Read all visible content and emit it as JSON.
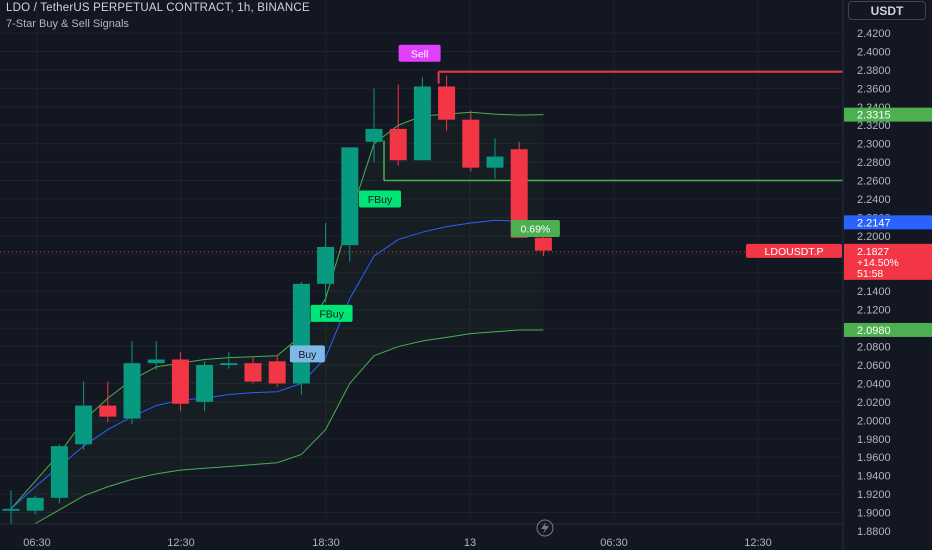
{
  "header": {
    "title": "LDO / TetherUS PERPETUAL CONTRACT, 1h, BINANCE",
    "indicator": "7-Star Buy & Sell Signals",
    "currency": "USDT"
  },
  "colors": {
    "background": "#131722",
    "up": "#089981",
    "down": "#f23645",
    "sma_line": "#2962ff",
    "band_line": "#4caf50",
    "grid": "#1e222d"
  },
  "chart_data": {
    "type": "candlestick",
    "y_range": [
      1.872,
      2.432
    ],
    "y_ticks": [
      "2.4200",
      "2.4000",
      "2.3800",
      "2.3600",
      "2.3400",
      "2.3200",
      "2.3000",
      "2.2800",
      "2.2600",
      "2.2400",
      "2.2200",
      "2.2000",
      "2.1800",
      "2.1600",
      "2.1400",
      "2.1200",
      "2.1000",
      "2.0800",
      "2.0600",
      "2.0400",
      "2.0200",
      "2.0000",
      "1.9800",
      "1.9600",
      "1.9400",
      "1.9200",
      "1.9000",
      "1.8800"
    ],
    "x_ticks": [
      "06:30",
      "12:30",
      "18:30",
      "13",
      "06:30",
      "12:30"
    ],
    "candles": [
      {
        "o": 1.902,
        "h": 1.924,
        "l": 1.88,
        "c": 1.904
      },
      {
        "o": 1.902,
        "h": 1.918,
        "l": 1.898,
        "c": 1.916
      },
      {
        "o": 1.916,
        "h": 1.974,
        "l": 1.91,
        "c": 1.972
      },
      {
        "o": 1.974,
        "h": 2.042,
        "l": 1.968,
        "c": 2.016
      },
      {
        "o": 2.016,
        "h": 2.042,
        "l": 1.998,
        "c": 2.004
      },
      {
        "o": 2.002,
        "h": 2.086,
        "l": 1.996,
        "c": 2.062
      },
      {
        "o": 2.062,
        "h": 2.086,
        "l": 2.055,
        "c": 2.066
      },
      {
        "o": 2.066,
        "h": 2.074,
        "l": 2.01,
        "c": 2.018
      },
      {
        "o": 2.02,
        "h": 2.064,
        "l": 2.01,
        "c": 2.06
      },
      {
        "o": 2.06,
        "h": 2.074,
        "l": 2.056,
        "c": 2.062
      },
      {
        "o": 2.062,
        "h": 2.068,
        "l": 2.04,
        "c": 2.042
      },
      {
        "o": 2.064,
        "h": 2.07,
        "l": 2.036,
        "c": 2.04
      },
      {
        "o": 2.04,
        "h": 2.15,
        "l": 2.028,
        "c": 2.148
      },
      {
        "o": 2.148,
        "h": 2.214,
        "l": 2.128,
        "c": 2.188
      },
      {
        "o": 2.19,
        "h": 2.296,
        "l": 2.172,
        "c": 2.296
      },
      {
        "o": 2.302,
        "h": 2.36,
        "l": 2.28,
        "c": 2.316
      },
      {
        "o": 2.316,
        "h": 2.364,
        "l": 2.276,
        "c": 2.282
      },
      {
        "o": 2.282,
        "h": 2.372,
        "l": 2.282,
        "c": 2.362
      },
      {
        "o": 2.362,
        "h": 2.374,
        "l": 2.314,
        "c": 2.326
      },
      {
        "o": 2.326,
        "h": 2.336,
        "l": 2.27,
        "c": 2.274
      },
      {
        "o": 2.274,
        "h": 2.306,
        "l": 2.262,
        "c": 2.286
      },
      {
        "o": 2.294,
        "h": 2.302,
        "l": 2.198,
        "c": 2.198
      },
      {
        "o": 2.198,
        "h": 2.204,
        "l": 2.178,
        "c": 2.184
      }
    ],
    "sma_line": [
      1.904,
      1.928,
      1.95,
      1.972,
      1.99,
      2.004,
      2.016,
      2.022,
      2.024,
      2.028,
      2.03,
      2.031,
      2.04,
      2.068,
      2.132,
      2.178,
      2.196,
      2.204,
      2.21,
      2.214,
      2.217,
      2.216,
      2.215
    ],
    "upper_band": [
      1.904,
      1.934,
      1.964,
      2.0,
      2.024,
      2.044,
      2.058,
      2.062,
      2.066,
      2.068,
      2.069,
      2.07,
      2.092,
      2.132,
      2.22,
      2.3,
      2.32,
      2.33,
      2.332,
      2.334,
      2.332,
      2.331,
      2.3315
    ],
    "lower_band": [
      1.87,
      1.888,
      1.903,
      1.918,
      1.928,
      1.936,
      1.942,
      1.946,
      1.948,
      1.95,
      1.952,
      1.954,
      1.963,
      1.99,
      2.04,
      2.07,
      2.08,
      2.086,
      2.09,
      2.094,
      2.096,
      2.098,
      2.098
    ],
    "resistance_line": {
      "value": 2.378,
      "from_index": 18
    },
    "support_line": {
      "value": 2.26,
      "from_index": 15
    },
    "price_labels": [
      {
        "value": 2.3315,
        "text": "2.3315",
        "color": "#4caf50"
      },
      {
        "value": 2.2147,
        "text": "2.2147",
        "color": "#2962ff"
      },
      {
        "value": 2.098,
        "text": "2.0980",
        "color": "#4caf50"
      }
    ],
    "current_price": {
      "value": 2.1827,
      "symbol": "LDOUSDT.P",
      "price": "2.1827",
      "change": "+14.50%",
      "countdown": "51:58",
      "color": "#f23645"
    },
    "signals": [
      {
        "label": "Sell",
        "index": 18,
        "value": 2.398,
        "color": "#e040fb",
        "text_color": "#ffffff"
      },
      {
        "label": "FBuy",
        "index": 15,
        "value": 2.24,
        "color": "#00e676",
        "text_color": "#131722"
      },
      {
        "label": "FBuy",
        "index": 13,
        "value": 2.116,
        "color": "#00e676",
        "text_color": "#131722"
      },
      {
        "label": "Buy",
        "index": 12,
        "value": 2.072,
        "color": "#7fb8e6",
        "text_color": "#131722"
      },
      {
        "label": "0.69%",
        "index": 22,
        "value": 2.208,
        "color": "#4caf50",
        "text_color": "#ffffff"
      }
    ]
  }
}
